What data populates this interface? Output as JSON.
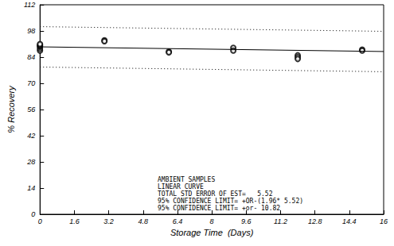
{
  "chart_data": {
    "type": "scatter",
    "xlabel": "Storage Time  (Days)",
    "ylabel": "% Recovery",
    "xlim": [
      0,
      16
    ],
    "ylim": [
      0,
      112
    ],
    "xticks": [
      0,
      1.6,
      3.2,
      4.8,
      6.4,
      8,
      9.6,
      11.2,
      12.8,
      14.4,
      16
    ],
    "yticks": [
      0,
      14,
      28,
      42,
      56,
      70,
      84,
      98,
      112
    ],
    "grid": false,
    "series": [
      {
        "type": "scatter",
        "marker": "circle",
        "color": "#000000",
        "x": [
          0,
          0,
          0,
          0,
          0,
          0,
          3,
          3,
          6,
          6,
          9,
          9,
          12,
          12,
          12,
          15,
          15
        ],
        "values": [
          87.5,
          88.5,
          89.5,
          90,
          90.5,
          91,
          93,
          92.5,
          87,
          86.5,
          89,
          87.5,
          85,
          84,
          83,
          88,
          87.5
        ]
      },
      {
        "type": "line",
        "line_style": "solid",
        "color": "#000000",
        "x": [
          0,
          16
        ],
        "values": [
          89.5,
          87
        ]
      },
      {
        "type": "line",
        "line_style": "dotted",
        "color": "#000000",
        "x": [
          0,
          16
        ],
        "values": [
          100.3,
          97.8
        ]
      },
      {
        "type": "line",
        "line_style": "dotted",
        "color": "#000000",
        "x": [
          0,
          16
        ],
        "values": [
          78.7,
          76.2
        ]
      }
    ],
    "annotations": [
      "AMBIENT SAMPLES",
      "LINEAR CURVE",
      "TOTAL STD ERROR OF EST=   5.52",
      "95% CONFIDENCE LIMIT= +OR-(1.96* 5.52)",
      "95% CONFIDENCE LIMIT= +or- 10.82"
    ]
  }
}
